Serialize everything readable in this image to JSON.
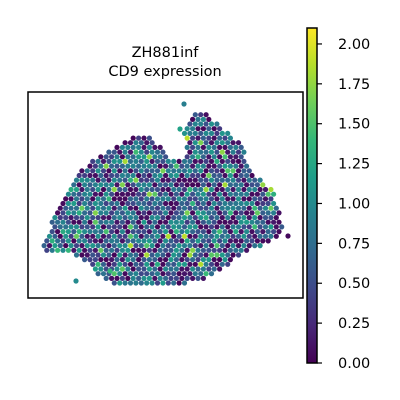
{
  "chart_data": {
    "type": "scatter",
    "subtype": "spatial-hexbin",
    "title": "ZH881inf",
    "subtitle": "CD9 expression",
    "xlabel": "",
    "ylabel": "",
    "colorbar": {
      "colormap": "viridis",
      "range": [
        0,
        2.1
      ],
      "ticks": [
        "0.00",
        "0.25",
        "0.50",
        "0.75",
        "1.00",
        "1.25",
        "1.50",
        "1.75",
        "2.00"
      ]
    },
    "colormap_stops": [
      "#440154",
      "#482878",
      "#3e4989",
      "#31688e",
      "#26828e",
      "#1f9e89",
      "#35b779",
      "#6ece58",
      "#b5de2b",
      "#fde725"
    ],
    "grid": false,
    "axes_frame": true,
    "notes_visible": "tissue-section spots colored by CD9 expression; majority in 0.3-1.1 range"
  }
}
